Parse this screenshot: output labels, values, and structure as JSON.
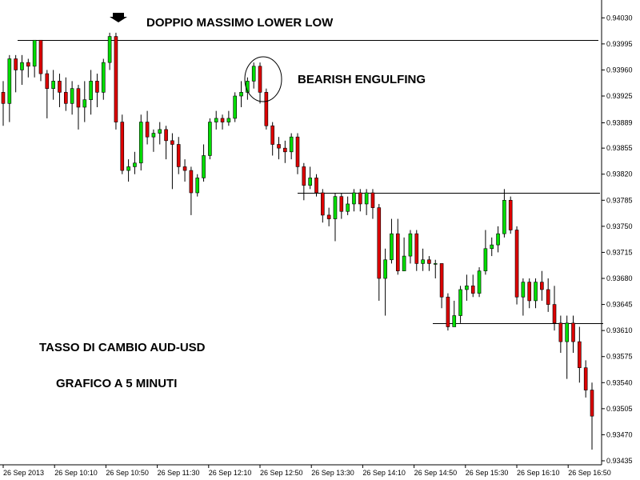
{
  "chart_data": {
    "type": "candlestick",
    "title": "",
    "colors": {
      "up": "#00dd00",
      "down": "#dd0000",
      "wick": "#000000",
      "line": "#000000"
    },
    "annotations": {
      "double_top": "DOPPIO MASSIMO LOWER LOW",
      "engulfing": "BEARISH ENGULFING",
      "pair": "TASSO DI CAMBIO AUD-USD",
      "timeframe": "GRAFICO A 5 MINUTI"
    },
    "y_axis": {
      "range": [
        0.93435,
        0.9404
      ],
      "ticks": [
        "0.94030",
        "0.93995",
        "0.93960",
        "0.93925",
        "0.93889",
        "0.93855",
        "0.93820",
        "0.93785",
        "0.93750",
        "0.93715",
        "0.93680",
        "0.93645",
        "0.93610",
        "0.93575",
        "0.93540",
        "0.93505",
        "0.93470",
        "0.93435"
      ]
    },
    "x_axis": {
      "labels": [
        "26 Sep 2013",
        "26 Sep 10:10",
        "26 Sep 10:50",
        "26 Sep 11:30",
        "26 Sep 12:10",
        "26 Sep 12:50",
        "26 Sep 13:30",
        "26 Sep 14:10",
        "26 Sep 14:50",
        "26 Sep 15:30",
        "26 Sep 16:10",
        "26 Sep 16:50"
      ]
    },
    "levels": [
      {
        "name": "double-top-resistance",
        "value": 0.94
      },
      {
        "name": "mid-resistance",
        "value": 0.93795
      },
      {
        "name": "support",
        "value": 0.9362
      }
    ],
    "candles": [
      [
        0.9393,
        0.93915,
        0.93945,
        0.93885
      ],
      [
        0.93915,
        0.93975,
        0.9398,
        0.9389
      ],
      [
        0.93975,
        0.9396,
        0.9398,
        0.9393
      ],
      [
        0.9396,
        0.9397,
        0.9398,
        0.9394
      ],
      [
        0.9397,
        0.93965,
        0.93975,
        0.9395
      ],
      [
        0.93965,
        0.94,
        0.94,
        0.9395
      ],
      [
        0.94,
        0.93955,
        0.94,
        0.93945
      ],
      [
        0.93955,
        0.93935,
        0.9396,
        0.93895
      ],
      [
        0.93935,
        0.93945,
        0.9396,
        0.9392
      ],
      [
        0.93945,
        0.9393,
        0.93955,
        0.9391
      ],
      [
        0.9393,
        0.93915,
        0.9395,
        0.93905
      ],
      [
        0.93915,
        0.93935,
        0.93945,
        0.939
      ],
      [
        0.93935,
        0.9391,
        0.9394,
        0.9388
      ],
      [
        0.9391,
        0.9392,
        0.93945,
        0.9389
      ],
      [
        0.9392,
        0.93945,
        0.9396,
        0.939
      ],
      [
        0.93945,
        0.9393,
        0.93955,
        0.9391
      ],
      [
        0.9393,
        0.9397,
        0.93975,
        0.9392
      ],
      [
        0.9397,
        0.94005,
        0.9401,
        0.9396
      ],
      [
        0.94005,
        0.9389,
        0.9401,
        0.9388
      ],
      [
        0.9389,
        0.93825,
        0.939,
        0.9382
      ],
      [
        0.93825,
        0.9383,
        0.9384,
        0.9381
      ],
      [
        0.9383,
        0.93835,
        0.9385,
        0.9382
      ],
      [
        0.93835,
        0.9389,
        0.939,
        0.93825
      ],
      [
        0.9389,
        0.9387,
        0.93905,
        0.9386
      ],
      [
        0.9387,
        0.93875,
        0.9388,
        0.9385
      ],
      [
        0.93875,
        0.9388,
        0.9389,
        0.9386
      ],
      [
        0.9388,
        0.93865,
        0.93885,
        0.9384
      ],
      [
        0.93865,
        0.9386,
        0.93875,
        0.938
      ],
      [
        0.9386,
        0.9383,
        0.9387,
        0.9382
      ],
      [
        0.9383,
        0.93825,
        0.9384,
        0.9381
      ],
      [
        0.93825,
        0.93795,
        0.9383,
        0.93765
      ],
      [
        0.93795,
        0.93815,
        0.9382,
        0.9379
      ],
      [
        0.93815,
        0.93845,
        0.9386,
        0.9381
      ],
      [
        0.93845,
        0.9389,
        0.93895,
        0.9384
      ],
      [
        0.9389,
        0.93895,
        0.93905,
        0.9388
      ],
      [
        0.93895,
        0.9389,
        0.939,
        0.9388
      ],
      [
        0.9389,
        0.93895,
        0.93905,
        0.93885
      ],
      [
        0.93895,
        0.93925,
        0.9393,
        0.9389
      ],
      [
        0.93925,
        0.9393,
        0.93945,
        0.9391
      ],
      [
        0.9393,
        0.93945,
        0.9395,
        0.9392
      ],
      [
        0.93945,
        0.93965,
        0.9397,
        0.93935
      ],
      [
        0.93965,
        0.9393,
        0.9397,
        0.93915
      ],
      [
        0.9393,
        0.93885,
        0.93935,
        0.9388
      ],
      [
        0.93885,
        0.9386,
        0.9389,
        0.93845
      ],
      [
        0.9386,
        0.93855,
        0.9387,
        0.9384
      ],
      [
        0.93855,
        0.9385,
        0.93865,
        0.93835
      ],
      [
        0.9385,
        0.9387,
        0.93875,
        0.9384
      ],
      [
        0.9387,
        0.9383,
        0.93875,
        0.9382
      ],
      [
        0.9383,
        0.93805,
        0.93835,
        0.93785
      ],
      [
        0.93805,
        0.93815,
        0.9383,
        0.938
      ],
      [
        0.93815,
        0.93795,
        0.9382,
        0.9379
      ],
      [
        0.93795,
        0.93765,
        0.938,
        0.93755
      ],
      [
        0.93765,
        0.9376,
        0.93775,
        0.9375
      ],
      [
        0.9376,
        0.9379,
        0.93795,
        0.9373
      ],
      [
        0.9379,
        0.9377,
        0.93795,
        0.9376
      ],
      [
        0.9377,
        0.9378,
        0.9379,
        0.93765
      ],
      [
        0.9378,
        0.93795,
        0.938,
        0.9377
      ],
      [
        0.93795,
        0.9378,
        0.938,
        0.9377
      ],
      [
        0.9378,
        0.93795,
        0.938,
        0.93765
      ],
      [
        0.93795,
        0.93775,
        0.938,
        0.9376
      ],
      [
        0.93775,
        0.9368,
        0.9378,
        0.9365
      ],
      [
        0.9368,
        0.93705,
        0.9372,
        0.9363
      ],
      [
        0.93705,
        0.9374,
        0.9376,
        0.937
      ],
      [
        0.9374,
        0.9369,
        0.9376,
        0.93685
      ],
      [
        0.9369,
        0.9371,
        0.93735,
        0.9369
      ],
      [
        0.9371,
        0.9374,
        0.93745,
        0.937
      ],
      [
        0.9374,
        0.937,
        0.93745,
        0.9369
      ],
      [
        0.937,
        0.93705,
        0.9372,
        0.9369
      ],
      [
        0.93705,
        0.937,
        0.9371,
        0.9369
      ],
      [
        0.937,
        0.937,
        0.93705,
        0.9368
      ],
      [
        0.937,
        0.93655,
        0.937,
        0.9364
      ],
      [
        0.93655,
        0.93615,
        0.9366,
        0.9361
      ],
      [
        0.93615,
        0.9363,
        0.9365,
        0.93615
      ],
      [
        0.9363,
        0.93665,
        0.9367,
        0.9362
      ],
      [
        0.93665,
        0.9367,
        0.93685,
        0.9365
      ],
      [
        0.9367,
        0.9366,
        0.93685,
        0.93655
      ],
      [
        0.9366,
        0.9369,
        0.93695,
        0.93655
      ],
      [
        0.9369,
        0.9372,
        0.93745,
        0.93685
      ],
      [
        0.9372,
        0.93725,
        0.93735,
        0.9371
      ],
      [
        0.93725,
        0.9374,
        0.9375,
        0.93715
      ],
      [
        0.9374,
        0.93785,
        0.938,
        0.93735
      ],
      [
        0.93785,
        0.93745,
        0.9379,
        0.9374
      ],
      [
        0.93745,
        0.93655,
        0.9375,
        0.93645
      ],
      [
        0.93655,
        0.93675,
        0.9368,
        0.9363
      ],
      [
        0.93675,
        0.9365,
        0.9368,
        0.9364
      ],
      [
        0.9365,
        0.93675,
        0.9368,
        0.9364
      ],
      [
        0.93675,
        0.93665,
        0.9369,
        0.9365
      ],
      [
        0.93665,
        0.93645,
        0.9368,
        0.93635
      ],
      [
        0.93645,
        0.9362,
        0.9367,
        0.9361
      ],
      [
        0.9362,
        0.93595,
        0.9363,
        0.9358
      ],
      [
        0.93595,
        0.9362,
        0.9363,
        0.93545
      ],
      [
        0.9362,
        0.93595,
        0.9363,
        0.9358
      ],
      [
        0.93595,
        0.9356,
        0.93615,
        0.9354
      ],
      [
        0.9356,
        0.9353,
        0.9357,
        0.9352
      ],
      [
        0.9353,
        0.93495,
        0.9354,
        0.9345
      ]
    ]
  }
}
